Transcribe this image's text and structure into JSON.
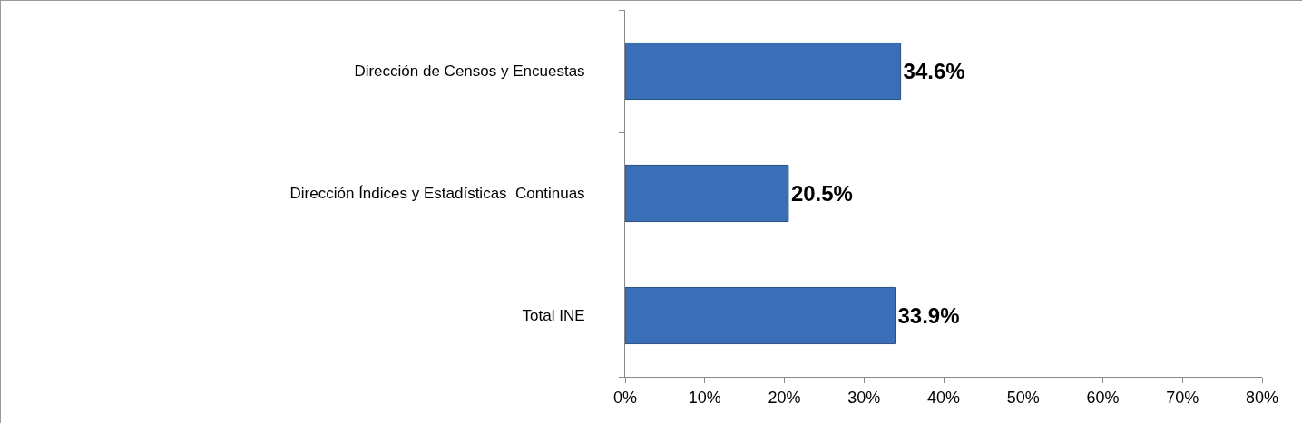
{
  "chart_data": {
    "type": "bar",
    "orientation": "horizontal",
    "categories": [
      "Dirección de Censos y Encuestas",
      "Dirección Índices y Estadísticas  Continuas",
      "Total INE"
    ],
    "values": [
      34.6,
      20.5,
      33.9
    ],
    "value_labels": [
      "34.6%",
      "20.5%",
      "33.9%"
    ],
    "color": "#3a6fb8",
    "xlim": [
      0,
      80
    ],
    "xticks": [
      {
        "value": 0,
        "label": "0%"
      },
      {
        "value": 10,
        "label": "10%"
      },
      {
        "value": 20,
        "label": "20%"
      },
      {
        "value": 30,
        "label": "30%"
      },
      {
        "value": 40,
        "label": "40%"
      },
      {
        "value": 50,
        "label": "50%"
      },
      {
        "value": 60,
        "label": "60%"
      },
      {
        "value": 70,
        "label": "70%"
      },
      {
        "value": 80,
        "label": "80%"
      }
    ],
    "grid": false
  }
}
